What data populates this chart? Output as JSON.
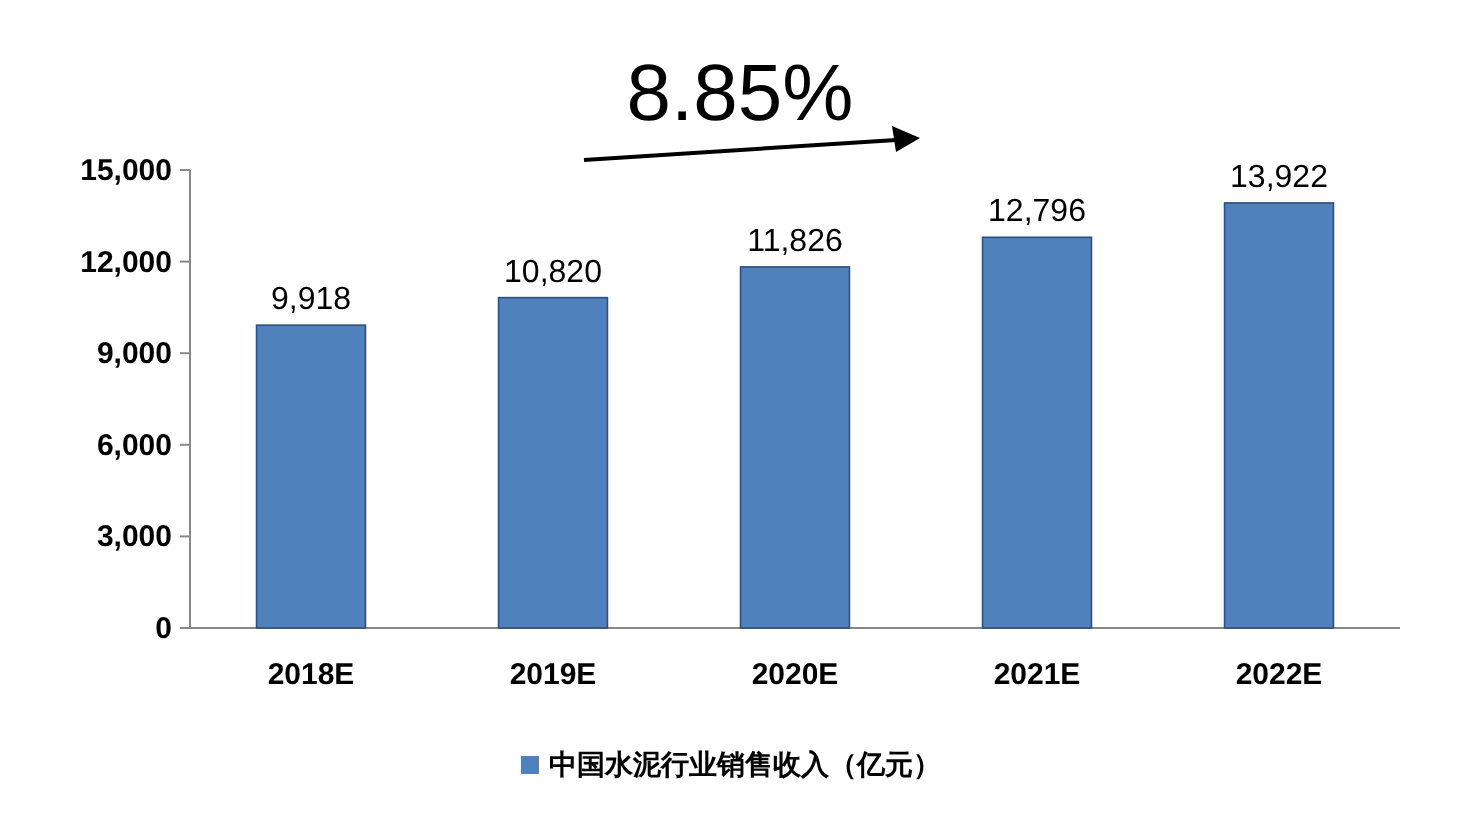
{
  "chart_data": {
    "type": "bar",
    "categories": [
      "2018E",
      "2019E",
      "2020E",
      "2021E",
      "2022E"
    ],
    "series": [
      {
        "name": "中国水泥行业销售收入（亿元）",
        "color": "#4f81bd",
        "values": [
          9918,
          10820,
          11826,
          12796,
          13922
        ],
        "value_labels": [
          "9,918",
          "10,820",
          "11,826",
          "12,796",
          "13,922"
        ]
      }
    ],
    "ylim": [
      0,
      15000
    ],
    "yticks": [
      {
        "value": 0,
        "label": "0"
      },
      {
        "value": 3000,
        "label": "3,000"
      },
      {
        "value": 6000,
        "label": "6,000"
      },
      {
        "value": 9000,
        "label": "9,000"
      },
      {
        "value": 12000,
        "label": "12,000"
      },
      {
        "value": 15000,
        "label": "15,000"
      }
    ],
    "annotations": [
      "8.85%"
    ],
    "legend": "bottom"
  }
}
